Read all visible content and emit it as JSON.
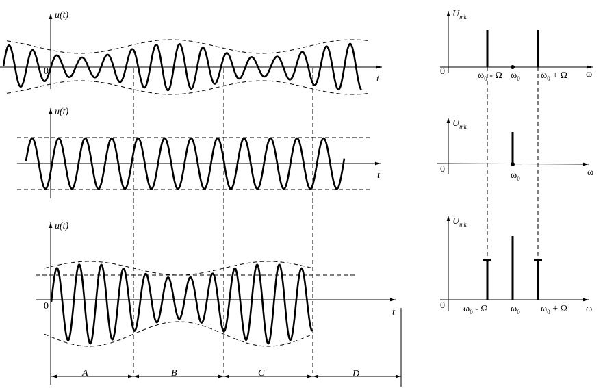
{
  "time_plots": [
    {
      "y_label": "u(t)",
      "x_label": "t",
      "origin": "0"
    },
    {
      "y_label": "u(t)",
      "x_label": "t"
    },
    {
      "y_label": "u(t)",
      "x_label": "t",
      "origin": "0"
    }
  ],
  "spectra": [
    {
      "y_label": "U",
      "y_label_sub": "mk",
      "origin": "0",
      "x_label": "ω",
      "ticks": [
        {
          "base": "ω",
          "sub": "0",
          "rest": " - Ω"
        },
        {
          "base": "ω",
          "sub": "0"
        },
        {
          "base": "ω",
          "sub": "0",
          "rest": " + Ω"
        }
      ]
    },
    {
      "y_label": "U",
      "y_label_sub": "mk",
      "origin": "0",
      "x_label": "ω",
      "ticks": [
        {
          "base": "ω",
          "sub": "0"
        }
      ]
    },
    {
      "y_label": "U",
      "y_label_sub": "mk",
      "origin": "0",
      "x_label": "ω",
      "ticks": [
        {
          "base": "ω",
          "sub": "0",
          "rest": " - Ω"
        },
        {
          "base": "ω",
          "sub": "0"
        },
        {
          "base": "ω",
          "sub": "0",
          "rest": " + Ω"
        }
      ]
    }
  ],
  "intervals": [
    "A",
    "B",
    "C",
    "D"
  ]
}
